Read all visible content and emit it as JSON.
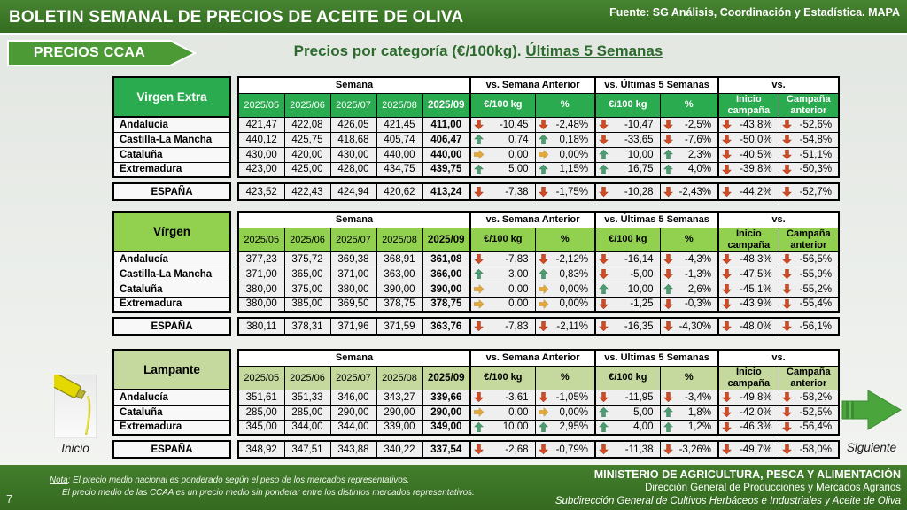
{
  "header": {
    "title": "BOLETIN SEMANAL DE PRECIOS DE ACEITE DE OLIVA",
    "source": "Fuente: SG Análisis, Coordinación y Estadística. MAPA",
    "banner": "PRECIOS CCAA",
    "subtitle_prefix": "Precios por categoría (€/100kg). ",
    "subtitle_underlined": "Últimas 5 Semanas"
  },
  "colors": {
    "bar_green": "#3e7b2a",
    "table1_header": "#2aab50",
    "table2_header": "#92d050",
    "table3_header": "#c5d89d",
    "arrow_up": "#4d9b70",
    "arrow_down": "#cd4b25",
    "arrow_right": "#e2a83a",
    "nav_arrow_green": "#4aa53d"
  },
  "table_common": {
    "group_semana": "Semana",
    "group_vs_prev": "vs. Semana Anterior",
    "group_vs5": "vs. Últimas 5 Semanas",
    "group_vs": "vs.",
    "weeks": [
      "2025/05",
      "2025/06",
      "2025/07",
      "2025/08",
      "2025/09"
    ],
    "sub_eur": "€/100 kg",
    "sub_pct": "%",
    "sub_inicio": "Inicio campaña",
    "sub_anterior": "Campaña anterior"
  },
  "tables": [
    {
      "name": "Virgen Extra",
      "rows": [
        {
          "label": "Andalucía",
          "weeks": [
            "421,47",
            "422,08",
            "426,05",
            "421,45",
            "411,00"
          ],
          "vs": [
            {
              "dir": "down",
              "val": "-10,45"
            },
            {
              "dir": "down",
              "val": "-2,48%"
            },
            {
              "dir": "down",
              "val": "-10,47"
            },
            {
              "dir": "down",
              "val": "-2,5%"
            },
            {
              "dir": "down",
              "val": "-43,8%"
            },
            {
              "dir": "down",
              "val": "-52,6%"
            }
          ]
        },
        {
          "label": "Castilla-La Mancha",
          "weeks": [
            "440,12",
            "425,75",
            "418,68",
            "405,74",
            "406,47"
          ],
          "vs": [
            {
              "dir": "up",
              "val": "0,74"
            },
            {
              "dir": "up",
              "val": "0,18%"
            },
            {
              "dir": "down",
              "val": "-33,65"
            },
            {
              "dir": "down",
              "val": "-7,6%"
            },
            {
              "dir": "down",
              "val": "-50,0%"
            },
            {
              "dir": "down",
              "val": "-54,8%"
            }
          ]
        },
        {
          "label": "Cataluña",
          "weeks": [
            "430,00",
            "420,00",
            "430,00",
            "440,00",
            "440,00"
          ],
          "vs": [
            {
              "dir": "right",
              "val": "0,00"
            },
            {
              "dir": "right",
              "val": "0,00%"
            },
            {
              "dir": "up",
              "val": "10,00"
            },
            {
              "dir": "up",
              "val": "2,3%"
            },
            {
              "dir": "down",
              "val": "-40,5%"
            },
            {
              "dir": "down",
              "val": "-51,1%"
            }
          ]
        },
        {
          "label": "Extremadura",
          "weeks": [
            "423,00",
            "425,00",
            "428,00",
            "434,75",
            "439,75"
          ],
          "vs": [
            {
              "dir": "up",
              "val": "5,00"
            },
            {
              "dir": "up",
              "val": "1,15%"
            },
            {
              "dir": "up",
              "val": "16,75"
            },
            {
              "dir": "up",
              "val": "4,0%"
            },
            {
              "dir": "down",
              "val": "-39,8%"
            },
            {
              "dir": "down",
              "val": "-50,3%"
            }
          ]
        }
      ],
      "total": {
        "label": "ESPAÑA",
        "weeks": [
          "423,52",
          "422,43",
          "424,94",
          "420,62",
          "413,24"
        ],
        "vs": [
          {
            "dir": "down",
            "val": "-7,38"
          },
          {
            "dir": "down",
            "val": "-1,75%"
          },
          {
            "dir": "down",
            "val": "-10,28"
          },
          {
            "dir": "down",
            "val": "-2,43%"
          },
          {
            "dir": "down",
            "val": "-44,2%"
          },
          {
            "dir": "down",
            "val": "-52,7%"
          }
        ]
      }
    },
    {
      "name": "Vírgen",
      "rows": [
        {
          "label": "Andalucía",
          "weeks": [
            "377,23",
            "375,72",
            "369,38",
            "368,91",
            "361,08"
          ],
          "vs": [
            {
              "dir": "down",
              "val": "-7,83"
            },
            {
              "dir": "down",
              "val": "-2,12%"
            },
            {
              "dir": "down",
              "val": "-16,14"
            },
            {
              "dir": "down",
              "val": "-4,3%"
            },
            {
              "dir": "down",
              "val": "-48,3%"
            },
            {
              "dir": "down",
              "val": "-56,5%"
            }
          ]
        },
        {
          "label": "Castilla-La Mancha",
          "weeks": [
            "371,00",
            "365,00",
            "371,00",
            "363,00",
            "366,00"
          ],
          "vs": [
            {
              "dir": "up",
              "val": "3,00"
            },
            {
              "dir": "up",
              "val": "0,83%"
            },
            {
              "dir": "down",
              "val": "-5,00"
            },
            {
              "dir": "down",
              "val": "-1,3%"
            },
            {
              "dir": "down",
              "val": "-47,5%"
            },
            {
              "dir": "down",
              "val": "-55,9%"
            }
          ]
        },
        {
          "label": "Cataluña",
          "weeks": [
            "380,00",
            "375,00",
            "380,00",
            "390,00",
            "390,00"
          ],
          "vs": [
            {
              "dir": "right",
              "val": "0,00"
            },
            {
              "dir": "right",
              "val": "0,00%"
            },
            {
              "dir": "up",
              "val": "10,00"
            },
            {
              "dir": "up",
              "val": "2,6%"
            },
            {
              "dir": "down",
              "val": "-45,1%"
            },
            {
              "dir": "down",
              "val": "-55,2%"
            }
          ]
        },
        {
          "label": "Extremadura",
          "weeks": [
            "380,00",
            "385,00",
            "369,50",
            "378,75",
            "378,75"
          ],
          "vs": [
            {
              "dir": "right",
              "val": "0,00"
            },
            {
              "dir": "right",
              "val": "0,00%"
            },
            {
              "dir": "down",
              "val": "-1,25"
            },
            {
              "dir": "down",
              "val": "-0,3%"
            },
            {
              "dir": "down",
              "val": "-43,9%"
            },
            {
              "dir": "down",
              "val": "-55,4%"
            }
          ]
        }
      ],
      "total": {
        "label": "ESPAÑA",
        "weeks": [
          "380,11",
          "378,31",
          "371,96",
          "371,59",
          "363,76"
        ],
        "vs": [
          {
            "dir": "down",
            "val": "-7,83"
          },
          {
            "dir": "down",
            "val": "-2,11%"
          },
          {
            "dir": "down",
            "val": "-16,35"
          },
          {
            "dir": "down",
            "val": "-4,30%"
          },
          {
            "dir": "down",
            "val": "-48,0%"
          },
          {
            "dir": "down",
            "val": "-56,1%"
          }
        ]
      }
    },
    {
      "name": "Lampante",
      "rows": [
        {
          "label": "Andalucía",
          "weeks": [
            "351,61",
            "351,33",
            "346,00",
            "343,27",
            "339,66"
          ],
          "vs": [
            {
              "dir": "down",
              "val": "-3,61"
            },
            {
              "dir": "down",
              "val": "-1,05%"
            },
            {
              "dir": "down",
              "val": "-11,95"
            },
            {
              "dir": "down",
              "val": "-3,4%"
            },
            {
              "dir": "down",
              "val": "-49,8%"
            },
            {
              "dir": "down",
              "val": "-58,2%"
            }
          ]
        },
        {
          "label": "Cataluña",
          "weeks": [
            "285,00",
            "285,00",
            "290,00",
            "290,00",
            "290,00"
          ],
          "vs": [
            {
              "dir": "right",
              "val": "0,00"
            },
            {
              "dir": "right",
              "val": "0,00%"
            },
            {
              "dir": "up",
              "val": "5,00"
            },
            {
              "dir": "up",
              "val": "1,8%"
            },
            {
              "dir": "down",
              "val": "-42,0%"
            },
            {
              "dir": "down",
              "val": "-52,5%"
            }
          ]
        },
        {
          "label": "Extremadura",
          "weeks": [
            "345,00",
            "344,00",
            "344,00",
            "339,00",
            "349,00"
          ],
          "vs": [
            {
              "dir": "up",
              "val": "10,00"
            },
            {
              "dir": "up",
              "val": "2,95%"
            },
            {
              "dir": "up",
              "val": "4,00"
            },
            {
              "dir": "up",
              "val": "1,2%"
            },
            {
              "dir": "down",
              "val": "-46,3%"
            },
            {
              "dir": "down",
              "val": "-56,4%"
            }
          ]
        }
      ],
      "total": {
        "label": "ESPAÑA",
        "weeks": [
          "348,92",
          "347,51",
          "343,88",
          "340,22",
          "337,54"
        ],
        "vs": [
          {
            "dir": "down",
            "val": "-2,68"
          },
          {
            "dir": "down",
            "val": "-0,79%"
          },
          {
            "dir": "down",
            "val": "-11,38"
          },
          {
            "dir": "down",
            "val": "-3,26%"
          },
          {
            "dir": "down",
            "val": "-49,7%"
          },
          {
            "dir": "down",
            "val": "-58,0%"
          }
        ]
      }
    }
  ],
  "nav": {
    "inicio": "Inicio",
    "siguiente": "Siguiente"
  },
  "footer": {
    "page": "7",
    "nota_label": "Nota",
    "nota_line1": ": El precio medio nacional es ponderado según el peso de los mercados representativos.",
    "nota_line2": "El precio medio de las CCAA es un precio medio sin ponderar entre los distintos mercados representativos.",
    "ministry": "MINISTERIO DE AGRICULTURA, PESCA Y ALIMENTACIÓN",
    "direccion": "Dirección General de Producciones y Mercados Agrarios",
    "subdireccion": "Subdirección General de Cultivos Herbáceos e Industriales y Aceite de Oliva"
  }
}
